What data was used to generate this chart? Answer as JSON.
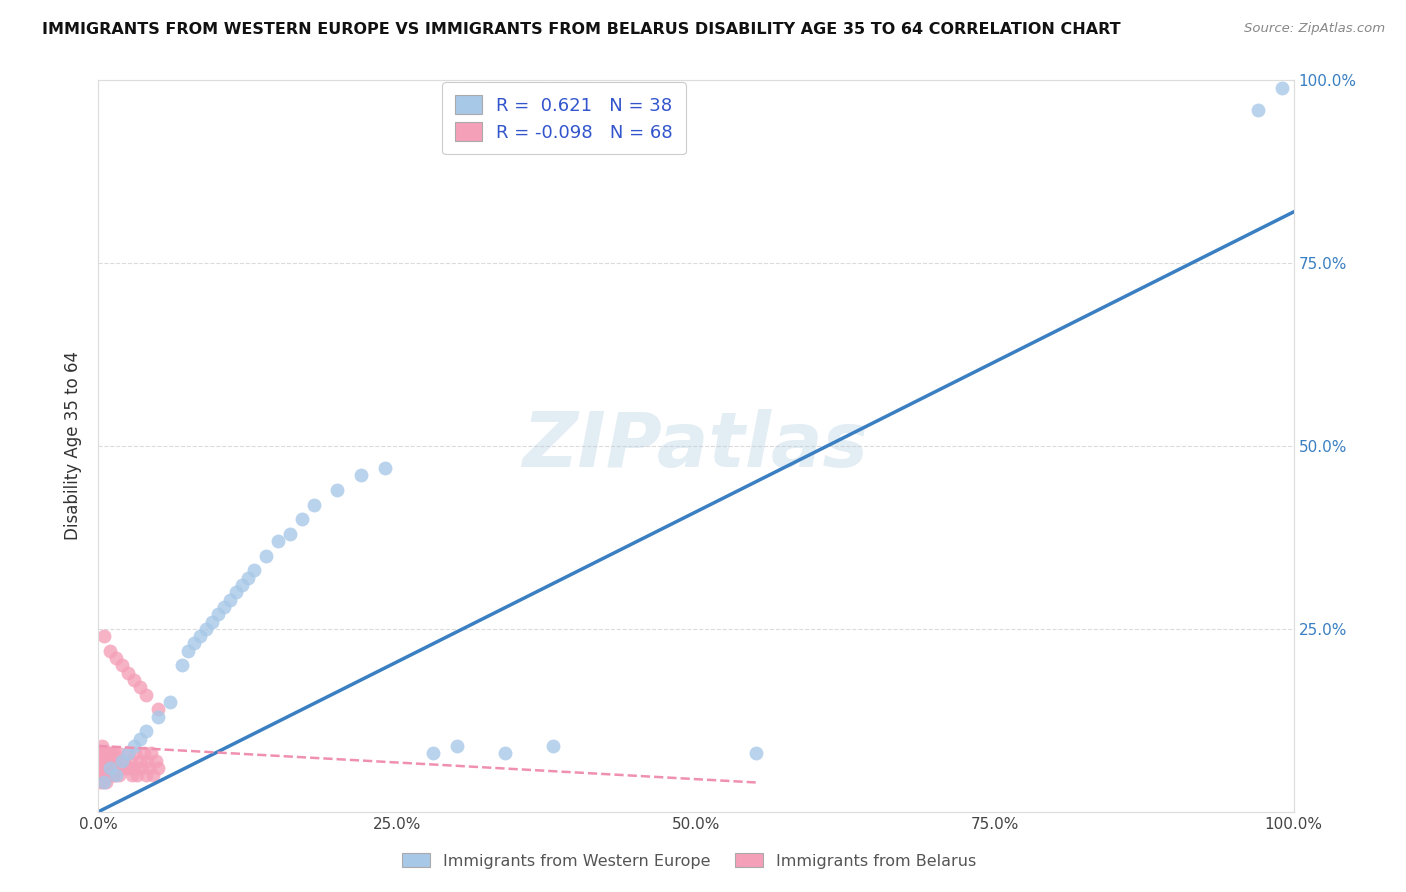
{
  "title": "IMMIGRANTS FROM WESTERN EUROPE VS IMMIGRANTS FROM BELARUS DISABILITY AGE 35 TO 64 CORRELATION CHART",
  "source": "Source: ZipAtlas.com",
  "ylabel": "Disability Age 35 to 64",
  "xlim": [
    0.0,
    1.0
  ],
  "ylim": [
    0.0,
    1.0
  ],
  "xtick_labels": [
    "0.0%",
    "25.0%",
    "50.0%",
    "75.0%",
    "100.0%"
  ],
  "xtick_values": [
    0.0,
    0.25,
    0.5,
    0.75,
    1.0
  ],
  "ytick_values": [
    0.25,
    0.5,
    0.75,
    1.0
  ],
  "right_ytick_labels": [
    "25.0%",
    "50.0%",
    "75.0%",
    "100.0%"
  ],
  "series1_color": "#a8c8e8",
  "series2_color": "#f4a0b8",
  "series1_line_color": "#3a7fc1",
  "series2_line_color": "#f090b0",
  "series1_label": "Immigrants from Western Europe",
  "series2_label": "Immigrants from Belarus",
  "series1_R": 0.621,
  "series1_N": 38,
  "series2_R": -0.098,
  "series2_N": 68,
  "watermark": "ZIPatlas",
  "background_color": "#ffffff",
  "grid_color": "#cccccc",
  "legend_text_color": "#3355cc",
  "right_axis_color": "#3a7fc1",
  "series1_x": [
    0.005,
    0.01,
    0.015,
    0.02,
    0.025,
    0.03,
    0.035,
    0.04,
    0.05,
    0.06,
    0.07,
    0.075,
    0.08,
    0.085,
    0.09,
    0.095,
    0.1,
    0.105,
    0.11,
    0.115,
    0.12,
    0.125,
    0.13,
    0.14,
    0.15,
    0.16,
    0.17,
    0.18,
    0.2,
    0.22,
    0.24,
    0.28,
    0.3,
    0.34,
    0.38,
    0.55,
    0.97,
    0.99
  ],
  "series1_y": [
    0.04,
    0.06,
    0.05,
    0.07,
    0.08,
    0.09,
    0.1,
    0.11,
    0.13,
    0.15,
    0.2,
    0.22,
    0.23,
    0.24,
    0.25,
    0.26,
    0.27,
    0.28,
    0.29,
    0.3,
    0.31,
    0.32,
    0.33,
    0.35,
    0.37,
    0.38,
    0.4,
    0.42,
    0.44,
    0.46,
    0.47,
    0.08,
    0.09,
    0.08,
    0.09,
    0.08,
    0.96,
    0.99
  ],
  "series2_x": [
    0.0,
    0.0,
    0.001,
    0.001,
    0.001,
    0.002,
    0.002,
    0.002,
    0.003,
    0.003,
    0.003,
    0.004,
    0.004,
    0.004,
    0.005,
    0.005,
    0.005,
    0.006,
    0.006,
    0.007,
    0.007,
    0.008,
    0.008,
    0.009,
    0.009,
    0.01,
    0.01,
    0.011,
    0.011,
    0.012,
    0.012,
    0.013,
    0.013,
    0.014,
    0.014,
    0.015,
    0.016,
    0.017,
    0.018,
    0.02,
    0.021,
    0.022,
    0.025,
    0.026,
    0.027,
    0.028,
    0.03,
    0.031,
    0.032,
    0.035,
    0.036,
    0.038,
    0.04,
    0.041,
    0.042,
    0.044,
    0.046,
    0.048,
    0.05,
    0.01,
    0.02,
    0.03,
    0.04,
    0.05,
    0.005,
    0.015,
    0.025,
    0.035
  ],
  "series2_y": [
    0.05,
    0.08,
    0.04,
    0.07,
    0.06,
    0.05,
    0.08,
    0.06,
    0.07,
    0.09,
    0.05,
    0.06,
    0.08,
    0.04,
    0.07,
    0.05,
    0.06,
    0.08,
    0.04,
    0.07,
    0.06,
    0.08,
    0.05,
    0.06,
    0.08,
    0.07,
    0.05,
    0.06,
    0.08,
    0.05,
    0.07,
    0.06,
    0.08,
    0.05,
    0.07,
    0.06,
    0.08,
    0.05,
    0.07,
    0.06,
    0.07,
    0.06,
    0.08,
    0.06,
    0.07,
    0.05,
    0.06,
    0.08,
    0.05,
    0.07,
    0.06,
    0.08,
    0.05,
    0.07,
    0.06,
    0.08,
    0.05,
    0.07,
    0.06,
    0.22,
    0.2,
    0.18,
    0.16,
    0.14,
    0.24,
    0.21,
    0.19,
    0.17
  ],
  "blue_line_x0": 0.0,
  "blue_line_y0": 0.0,
  "blue_line_x1": 1.0,
  "blue_line_y1": 0.82,
  "pink_line_x0": 0.0,
  "pink_line_y0": 0.09,
  "pink_line_x1": 0.55,
  "pink_line_y1": 0.04
}
